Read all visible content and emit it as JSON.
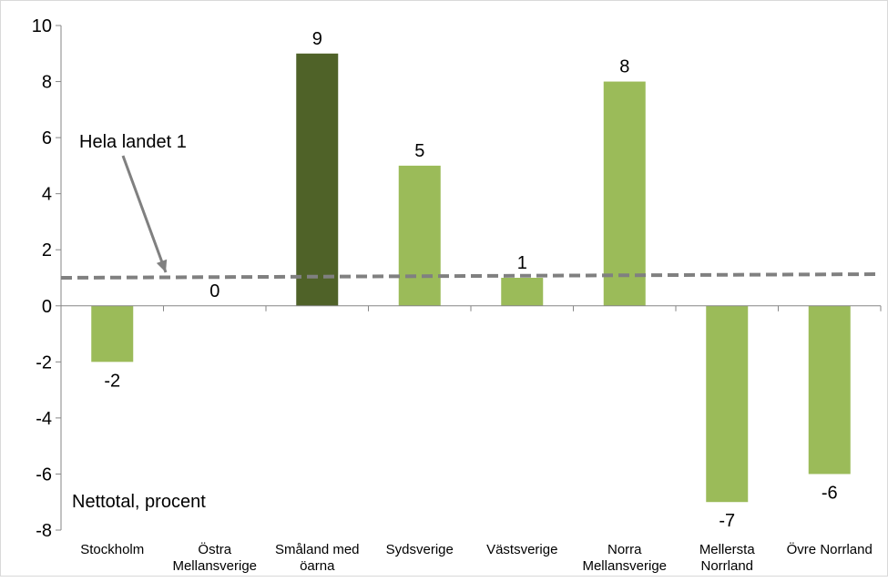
{
  "chart_data": {
    "type": "bar",
    "categories": [
      "Stockholm",
      "Östra Mellansverige",
      "Småland med öarna",
      "Sydsverige",
      "Västsverige",
      "Norra Mellansverige",
      "Mellersta Norrland",
      "Övre Norrland"
    ],
    "category_lines": [
      [
        "Stockholm"
      ],
      [
        "Östra",
        "Mellansverige"
      ],
      [
        "Småland med",
        "öarna"
      ],
      [
        "Sydsverige"
      ],
      [
        "Västsverige"
      ],
      [
        "Norra",
        "Mellansverige"
      ],
      [
        "Mellersta",
        "Norrland"
      ],
      [
        "Övre Norrland"
      ]
    ],
    "values": [
      -2,
      0,
      9,
      5,
      1,
      8,
      -7,
      -6
    ],
    "data_labels": [
      "-2",
      "0",
      "9",
      "5",
      "1",
      "8",
      "-7",
      "-6"
    ],
    "highlight_index": 2,
    "ylim": [
      -8,
      10
    ],
    "yticks": [
      -8,
      -6,
      -4,
      -2,
      0,
      2,
      4,
      6,
      8,
      10
    ],
    "reference_line": {
      "value": 1,
      "label": "Hela landet 1"
    },
    "ylabel": "Nettotal, procent",
    "colors": {
      "bar": "#9bbb59",
      "highlight": "#4f6228",
      "reference": "#808080",
      "axis": "#868686"
    },
    "grid": false,
    "legend": "none"
  }
}
